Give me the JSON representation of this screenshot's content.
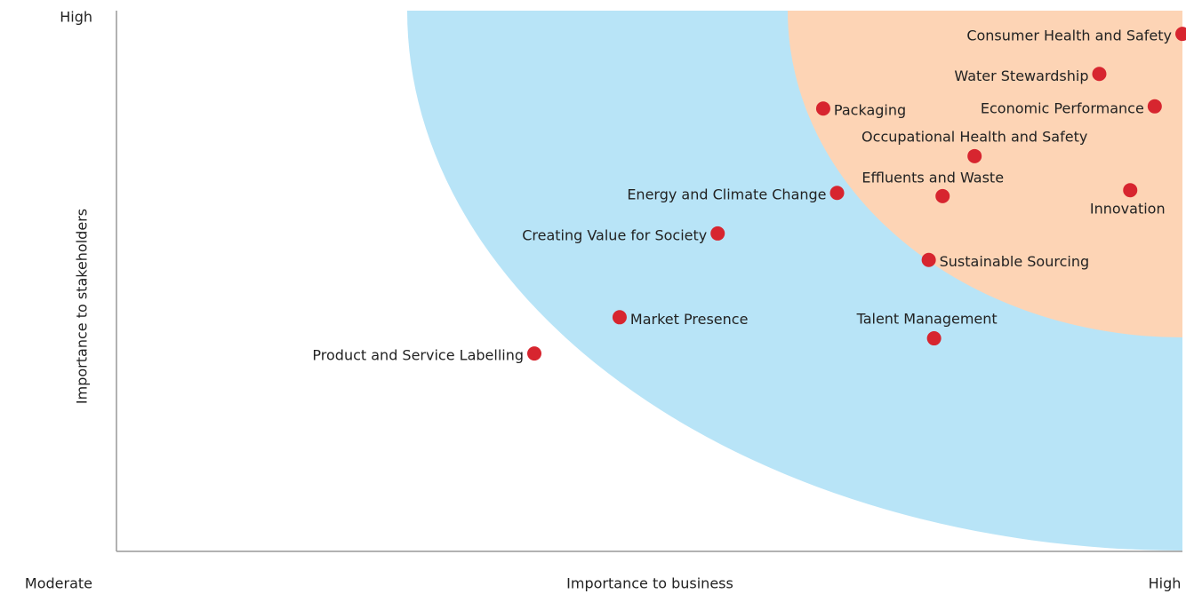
{
  "chart_data": {
    "type": "scatter",
    "xlabel": "Importance to business",
    "ylabel": "Importance to stakeholders",
    "xlim": [
      0,
      10
    ],
    "ylim": [
      0,
      10
    ],
    "xticks": [
      {
        "value": 0,
        "label": "Moderate"
      },
      {
        "value": 10,
        "label": "High"
      }
    ],
    "yticks": [
      {
        "value": 10,
        "label": "High"
      }
    ],
    "color": "#d7252f",
    "labels": [
      "Consumer Health and Safety",
      "Water Stewardship",
      "Economic Performance",
      "Packaging",
      "Occupational Health and Safety",
      "Energy and Climate Change",
      "Effluents and Waste",
      "Innovation",
      "Creating Value for Society",
      "Sustainable Sourcing",
      "Market Presence",
      "Talent Management",
      "Product and Service Labelling"
    ],
    "x": [
      10.0,
      9.22,
      9.74,
      6.63,
      8.05,
      6.76,
      7.75,
      9.51,
      5.64,
      7.62,
      4.72,
      7.67,
      3.92
    ],
    "y": [
      9.57,
      8.83,
      8.23,
      8.19,
      7.31,
      6.63,
      6.57,
      6.68,
      5.88,
      5.39,
      4.33,
      3.94,
      3.66
    ]
  }
}
